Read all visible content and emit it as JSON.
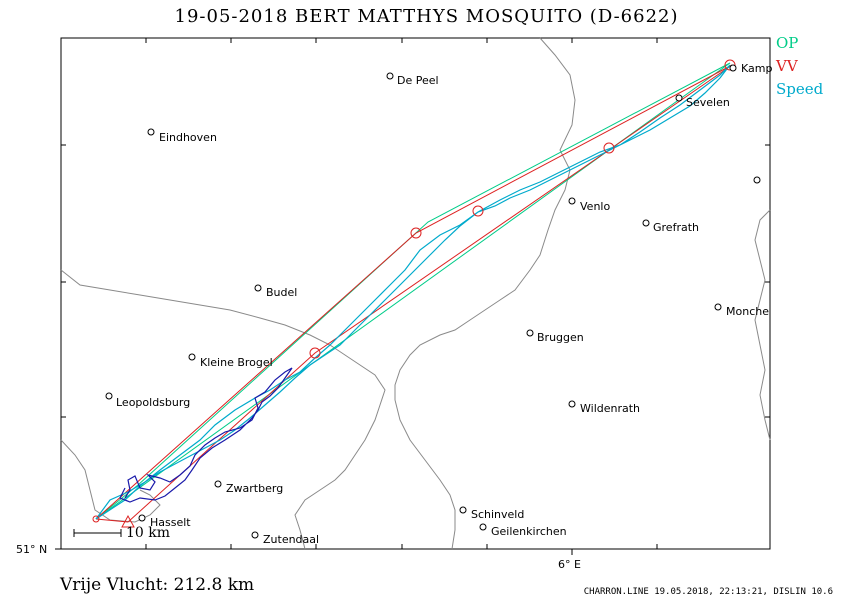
{
  "title": "19-05-2018   BERT MATTHYS   MOSQUITO (D-6622)",
  "legend": [
    {
      "label": "OP",
      "color": "#00cc88"
    },
    {
      "label": "VV",
      "color": "#dd2222"
    },
    {
      "label": "Speed",
      "color": "#00aacc"
    }
  ],
  "places": [
    {
      "name": "Kamp"
    },
    {
      "name": "Sevelen"
    },
    {
      "name": "De Peel"
    },
    {
      "name": "Eindhoven"
    },
    {
      "name": "Venlo"
    },
    {
      "name": "Grefrath"
    },
    {
      "name": "Budel"
    },
    {
      "name": "Monche"
    },
    {
      "name": "Bruggen"
    },
    {
      "name": "Kleine Brogel"
    },
    {
      "name": "Leopoldsburg"
    },
    {
      "name": "Wildenrath"
    },
    {
      "name": "Zwartberg"
    },
    {
      "name": "Schinveld"
    },
    {
      "name": "Hasselt"
    },
    {
      "name": "Geilenkirchen"
    },
    {
      "name": "Zutendaal"
    }
  ],
  "axes": {
    "latitude_label": "51° N",
    "longitude_label": "6° E"
  },
  "scale_bar": "10 km",
  "flight_distance": "Vrije Vlucht:  212.8 km",
  "footer": "CHARRON.LINE 19.05.2018, 22:13:21, DISLIN 10.6",
  "colors": {
    "track": "#1a1aaa",
    "op": "#00cc88",
    "vv": "#dd2222",
    "speed": "#00aacc",
    "border": "#888888"
  }
}
